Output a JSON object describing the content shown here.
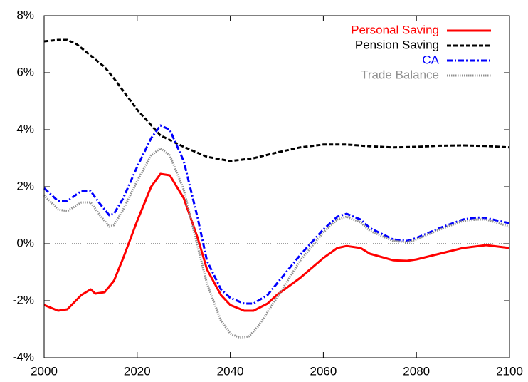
{
  "chart_data": {
    "type": "line",
    "xlim": [
      2000,
      2100
    ],
    "xticks": [
      2000,
      2020,
      2040,
      2060,
      2080,
      2100
    ],
    "ylim": [
      -4,
      8
    ],
    "yticks": [
      {
        "value": -4,
        "label": "-4%"
      },
      {
        "value": -2,
        "label": "-2%"
      },
      {
        "value": 0,
        "label": "0%"
      },
      {
        "value": 2,
        "label": "2%"
      },
      {
        "value": 4,
        "label": "4%"
      },
      {
        "value": 6,
        "label": "6%"
      },
      {
        "value": 8,
        "label": "8%"
      }
    ],
    "reference_line": 0,
    "legend": "top-right",
    "series": [
      {
        "name": "Personal Saving",
        "color": "#ff0000",
        "style": "solid",
        "x": [
          2000,
          2003,
          2005,
          2008,
          2010,
          2011,
          2013,
          2015,
          2017,
          2020,
          2023,
          2025,
          2027,
          2030,
          2033,
          2035,
          2038,
          2040,
          2043,
          2045,
          2048,
          2050,
          2055,
          2060,
          2063,
          2065,
          2068,
          2070,
          2075,
          2078,
          2080,
          2085,
          2090,
          2095,
          2100
        ],
        "values": [
          -2.15,
          -2.35,
          -2.3,
          -1.8,
          -1.6,
          -1.75,
          -1.7,
          -1.3,
          -0.5,
          0.8,
          2.0,
          2.45,
          2.4,
          1.6,
          0.2,
          -0.9,
          -1.8,
          -2.15,
          -2.35,
          -2.35,
          -2.1,
          -1.8,
          -1.2,
          -0.5,
          -0.15,
          -0.08,
          -0.15,
          -0.35,
          -0.58,
          -0.6,
          -0.55,
          -0.35,
          -0.15,
          -0.05,
          -0.15
        ]
      },
      {
        "name": "Pension Saving",
        "color": "#000000",
        "style": "dashed",
        "x": [
          2000,
          2003,
          2005,
          2007,
          2010,
          2013,
          2015,
          2020,
          2025,
          2030,
          2035,
          2040,
          2045,
          2050,
          2055,
          2060,
          2065,
          2070,
          2075,
          2080,
          2085,
          2090,
          2095,
          2100
        ],
        "values": [
          7.1,
          7.15,
          7.15,
          7.0,
          6.6,
          6.2,
          5.8,
          4.7,
          3.8,
          3.4,
          3.05,
          2.9,
          3.0,
          3.2,
          3.38,
          3.48,
          3.48,
          3.42,
          3.38,
          3.4,
          3.44,
          3.45,
          3.43,
          3.38
        ]
      },
      {
        "name": "CA",
        "color": "#0000ff",
        "style": "dashdot",
        "x": [
          2000,
          2003,
          2005,
          2008,
          2010,
          2012,
          2014,
          2015,
          2017,
          2020,
          2023,
          2025,
          2027,
          2030,
          2033,
          2035,
          2038,
          2040,
          2043,
          2045,
          2048,
          2050,
          2055,
          2060,
          2063,
          2065,
          2068,
          2070,
          2075,
          2078,
          2080,
          2085,
          2090,
          2093,
          2095,
          2100
        ],
        "values": [
          1.95,
          1.5,
          1.5,
          1.85,
          1.85,
          1.4,
          1.0,
          1.05,
          1.6,
          2.7,
          3.7,
          4.15,
          4.0,
          2.9,
          0.9,
          -0.6,
          -1.6,
          -1.9,
          -2.1,
          -2.1,
          -1.8,
          -1.4,
          -0.4,
          0.5,
          0.95,
          1.05,
          0.85,
          0.55,
          0.15,
          0.1,
          0.2,
          0.55,
          0.85,
          0.92,
          0.9,
          0.72
        ]
      },
      {
        "name": "Trade Balance",
        "color": "#909090",
        "style": "dotted",
        "x": [
          2000,
          2003,
          2005,
          2008,
          2010,
          2012,
          2014,
          2015,
          2017,
          2020,
          2023,
          2025,
          2027,
          2030,
          2033,
          2035,
          2038,
          2040,
          2042,
          2044,
          2046,
          2050,
          2055,
          2060,
          2063,
          2065,
          2068,
          2070,
          2075,
          2078,
          2080,
          2085,
          2090,
          2093,
          2095,
          2100
        ],
        "values": [
          1.7,
          1.2,
          1.15,
          1.45,
          1.45,
          1.0,
          0.6,
          0.65,
          1.2,
          2.2,
          3.1,
          3.35,
          3.1,
          1.9,
          -0.1,
          -1.4,
          -2.7,
          -3.15,
          -3.3,
          -3.25,
          -2.9,
          -1.9,
          -0.6,
          0.4,
          0.85,
          0.95,
          0.75,
          0.45,
          0.1,
          0.05,
          0.15,
          0.5,
          0.8,
          0.85,
          0.85,
          0.6
        ]
      }
    ]
  }
}
